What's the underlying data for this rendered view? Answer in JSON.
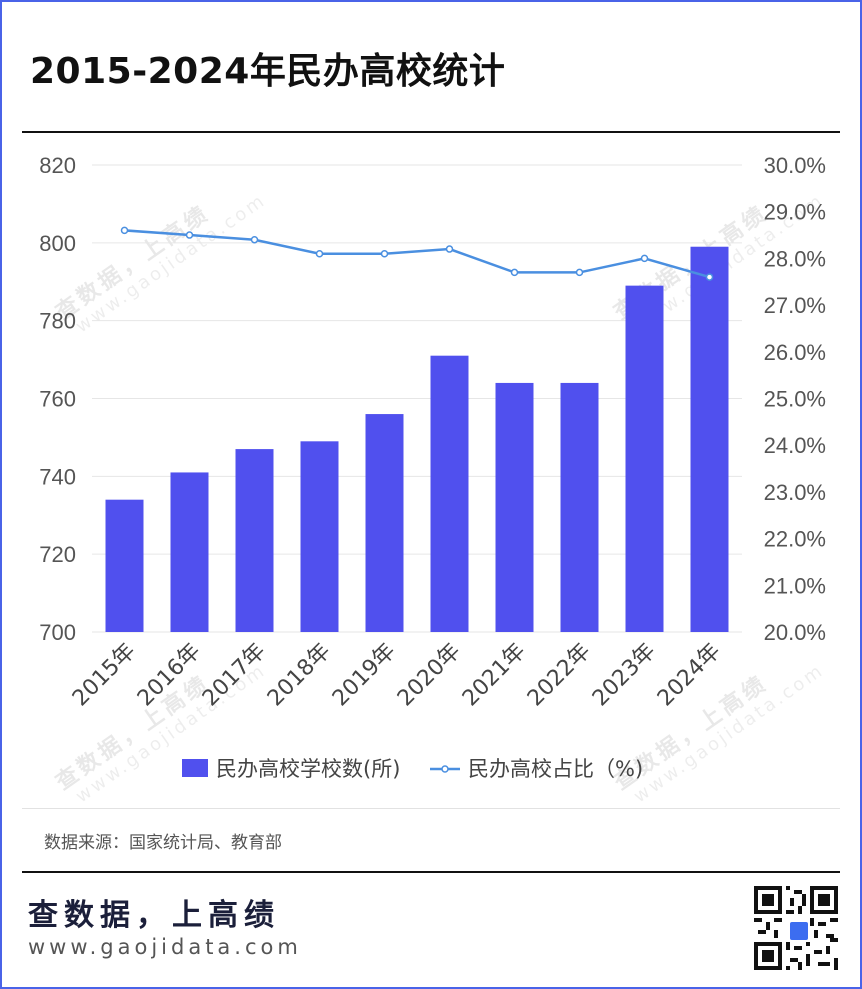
{
  "title": "2015-2024年民办高校统计",
  "source": "数据来源：国家统计局、教育部",
  "brand": "查数据，上高绩",
  "site": "www.gaojidata.com",
  "watermark": {
    "cn": "查数据，上高绩",
    "en": "www.gaojidata.com"
  },
  "colors": {
    "bar": "#5050ee",
    "line": "#4a8fe0",
    "title": "#111111",
    "frame": "#4a63e8"
  },
  "chart_data": {
    "type": "bar",
    "categories": [
      "2015年",
      "2016年",
      "2017年",
      "2018年",
      "2019年",
      "2020年",
      "2021年",
      "2022年",
      "2023年",
      "2024年"
    ],
    "series": [
      {
        "name": "民办高校学校数(所)",
        "type": "bar",
        "axis": "left",
        "values": [
          734,
          741,
          747,
          749,
          756,
          771,
          764,
          764,
          789,
          799
        ]
      },
      {
        "name": "民办高校占比（%)",
        "type": "line",
        "axis": "right",
        "values": [
          28.6,
          28.5,
          28.4,
          28.1,
          28.1,
          28.2,
          27.7,
          27.7,
          28.0,
          27.6
        ]
      }
    ],
    "left_axis": {
      "min": 700,
      "max": 820,
      "ticks": [
        "700",
        "720",
        "740",
        "760",
        "780",
        "800",
        "820"
      ]
    },
    "right_axis": {
      "min": 20,
      "max": 30,
      "ticks": [
        "20.0%",
        "21.0%",
        "22.0%",
        "23.0%",
        "24.0%",
        "25.0%",
        "26.0%",
        "27.0%",
        "28.0%",
        "29.0%",
        "30.0%"
      ]
    },
    "legend": [
      {
        "label": "民办高校学校数(所)",
        "kind": "bar"
      },
      {
        "label": "民办高校占比（%)",
        "kind": "line"
      }
    ],
    "legend_position": "bottom",
    "grid": true
  }
}
